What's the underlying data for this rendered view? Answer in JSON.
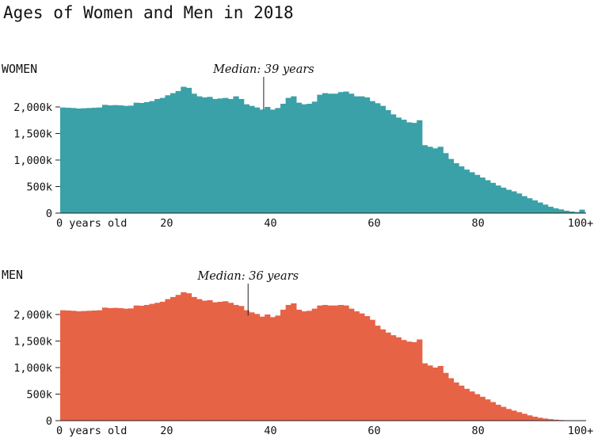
{
  "title": "Ages of Women and Men in 2018",
  "colors": {
    "women": "#3aa1a8",
    "men": "#e76346",
    "text": "#111111",
    "axis": "#222222"
  },
  "chart_data": [
    {
      "type": "bar",
      "label": "WOMEN",
      "color": "#3aa1a8",
      "annotation": "Median: 39 years",
      "median": 39,
      "xlim": [
        0,
        100
      ],
      "ylim": [
        0,
        2500000
      ],
      "y_ticks": [
        {
          "value": 0,
          "label": "0"
        },
        {
          "value": 500000,
          "label": "500k"
        },
        {
          "value": 1000000,
          "label": "1,000k"
        },
        {
          "value": 1500000,
          "label": "1,500k"
        },
        {
          "value": 2000000,
          "label": "2,000k"
        }
      ],
      "x_ticks": [
        {
          "value": 0,
          "label": "0 years old"
        },
        {
          "value": 20,
          "label": "20"
        },
        {
          "value": 40,
          "label": "40"
        },
        {
          "value": 60,
          "label": "60"
        },
        {
          "value": 80,
          "label": "80"
        },
        {
          "value": 100,
          "label": "100+"
        }
      ],
      "values": [
        1990000,
        1985000,
        1980000,
        1970000,
        1975000,
        1980000,
        1985000,
        1990000,
        2040000,
        2030000,
        2035000,
        2030000,
        2020000,
        2025000,
        2080000,
        2075000,
        2090000,
        2110000,
        2150000,
        2170000,
        2220000,
        2260000,
        2300000,
        2380000,
        2360000,
        2250000,
        2200000,
        2180000,
        2190000,
        2150000,
        2160000,
        2170000,
        2150000,
        2200000,
        2150000,
        2050000,
        2020000,
        1990000,
        1950000,
        2000000,
        1950000,
        1980000,
        2060000,
        2170000,
        2200000,
        2080000,
        2050000,
        2060000,
        2100000,
        2230000,
        2260000,
        2250000,
        2250000,
        2280000,
        2290000,
        2250000,
        2200000,
        2200000,
        2180000,
        2110000,
        2070000,
        2020000,
        1940000,
        1860000,
        1800000,
        1760000,
        1710000,
        1700000,
        1750000,
        1280000,
        1250000,
        1220000,
        1250000,
        1130000,
        1020000,
        940000,
        880000,
        820000,
        770000,
        720000,
        670000,
        620000,
        570000,
        520000,
        480000,
        440000,
        410000,
        370000,
        320000,
        280000,
        240000,
        200000,
        160000,
        120000,
        90000,
        70000,
        45000,
        30000,
        20000,
        65000
      ]
    },
    {
      "type": "bar",
      "label": "MEN",
      "color": "#e76346",
      "annotation": "Median: 36 years",
      "median": 36,
      "xlim": [
        0,
        100
      ],
      "ylim": [
        0,
        2500000
      ],
      "y_ticks": [
        {
          "value": 0,
          "label": "0"
        },
        {
          "value": 500000,
          "label": "500k"
        },
        {
          "value": 1000000,
          "label": "1,000k"
        },
        {
          "value": 1500000,
          "label": "1,500k"
        },
        {
          "value": 2000000,
          "label": "2,000k"
        }
      ],
      "x_ticks": [
        {
          "value": 0,
          "label": "0 years old"
        },
        {
          "value": 20,
          "label": "20"
        },
        {
          "value": 40,
          "label": "40"
        },
        {
          "value": 60,
          "label": "60"
        },
        {
          "value": 80,
          "label": "80"
        },
        {
          "value": 100,
          "label": "100+"
        }
      ],
      "values": [
        2080000,
        2075000,
        2070000,
        2060000,
        2065000,
        2070000,
        2075000,
        2080000,
        2130000,
        2120000,
        2125000,
        2120000,
        2110000,
        2115000,
        2170000,
        2165000,
        2180000,
        2200000,
        2220000,
        2240000,
        2290000,
        2330000,
        2370000,
        2420000,
        2400000,
        2330000,
        2290000,
        2260000,
        2270000,
        2230000,
        2240000,
        2250000,
        2220000,
        2180000,
        2160000,
        2080000,
        2040000,
        2010000,
        1960000,
        2000000,
        1950000,
        1980000,
        2090000,
        2180000,
        2210000,
        2090000,
        2060000,
        2070000,
        2110000,
        2170000,
        2180000,
        2170000,
        2170000,
        2180000,
        2170000,
        2110000,
        2060000,
        2020000,
        1970000,
        1900000,
        1790000,
        1720000,
        1660000,
        1610000,
        1570000,
        1520000,
        1490000,
        1480000,
        1530000,
        1080000,
        1040000,
        1000000,
        1030000,
        900000,
        800000,
        720000,
        660000,
        600000,
        550000,
        500000,
        450000,
        400000,
        350000,
        300000,
        260000,
        220000,
        190000,
        160000,
        130000,
        100000,
        75000,
        55000,
        40000,
        28000,
        18000,
        12000,
        8000,
        5000,
        3000,
        4000
      ]
    }
  ]
}
